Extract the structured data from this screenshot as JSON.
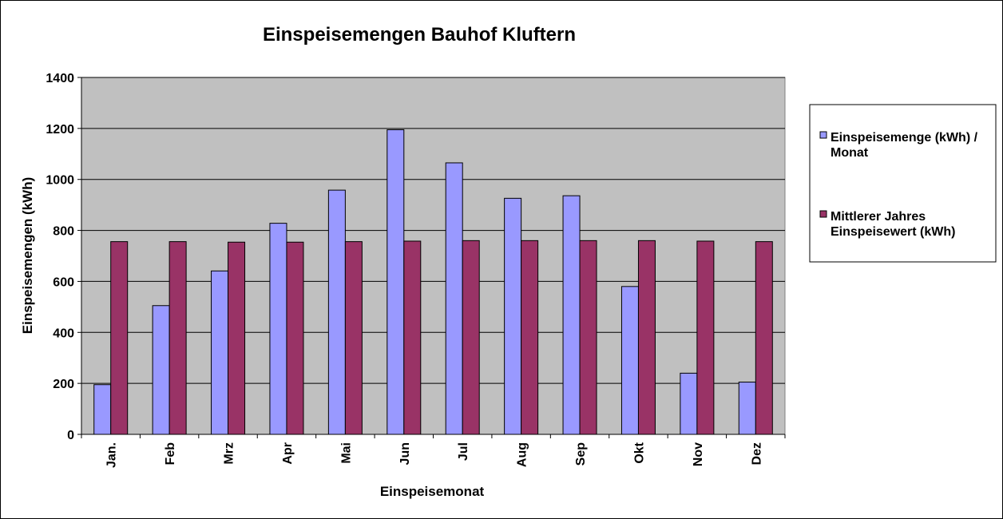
{
  "chart_data": {
    "type": "bar",
    "title": "Einspeisemengen Bauhof Kluftern",
    "xlabel": "Einspeisemonat",
    "ylabel": "Einspeisemengen (kWh)",
    "ylim": [
      0,
      1400
    ],
    "yticks": [
      0,
      200,
      400,
      600,
      800,
      1000,
      1200,
      1400
    ],
    "grid": true,
    "legend_position": "right",
    "categories": [
      "Jan.",
      "Feb",
      "Mrz",
      "Apr",
      "Mai",
      "Jun",
      "Jul",
      "Aug",
      "Sep",
      "Okt",
      "Nov",
      "Dez"
    ],
    "series": [
      {
        "name": "Einspeisemenge (kWh) / Monat",
        "legend_lines": [
          "Einspeisemenge (kWh) /",
          "Monat"
        ],
        "color": "#9999ff",
        "values": [
          195,
          505,
          641,
          828,
          958,
          1195,
          1065,
          926,
          936,
          580,
          240,
          205
        ]
      },
      {
        "name": "Mittlerer Jahres Einspeisewert (kWh)",
        "legend_lines": [
          "Mittlerer Jahres",
          "Einspeisewert (kWh)"
        ],
        "color": "#993366",
        "values": [
          756,
          756,
          754,
          754,
          756,
          758,
          760,
          760,
          760,
          760,
          758,
          756
        ]
      }
    ],
    "plot_background": "#c0c0c0",
    "gridline_color": "#000000"
  }
}
